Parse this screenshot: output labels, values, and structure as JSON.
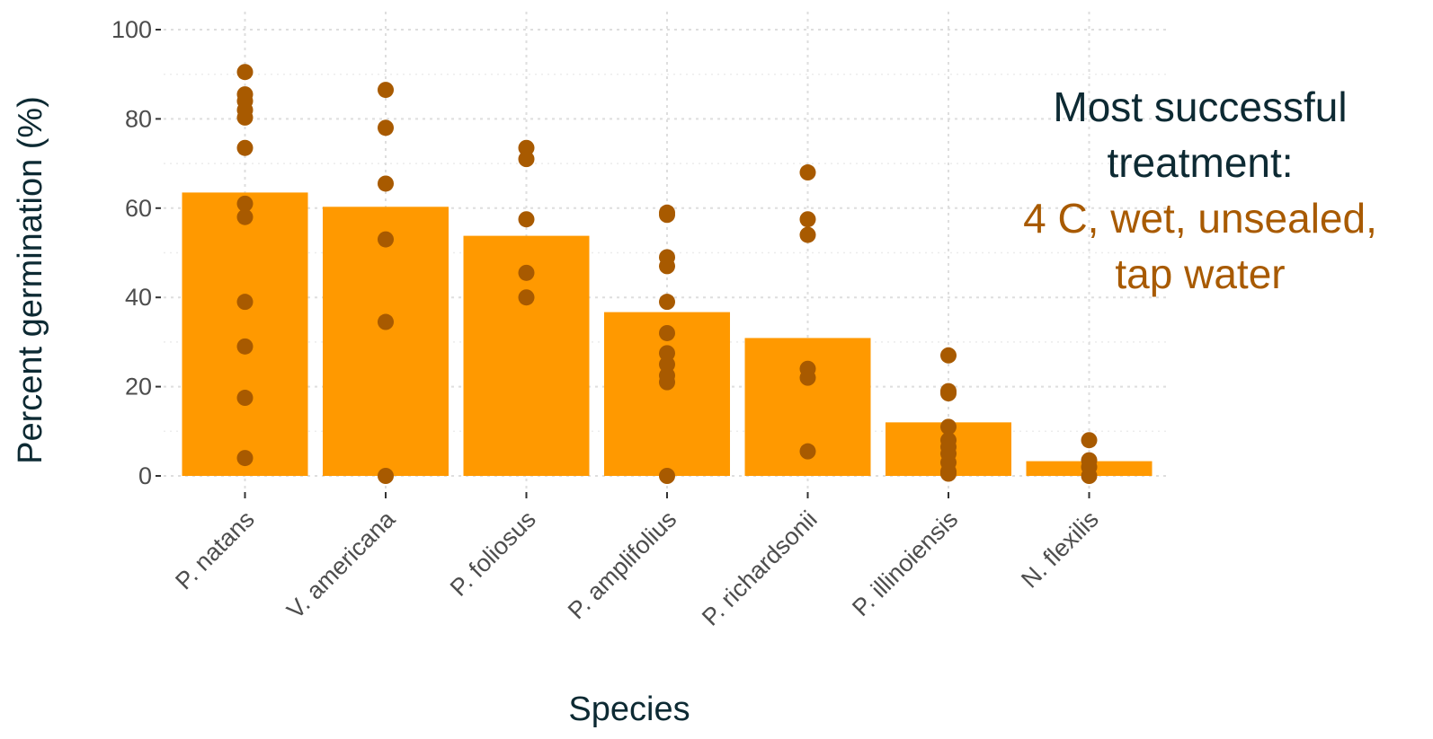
{
  "chart_data": {
    "type": "bar",
    "xlabel": "Species",
    "ylabel": "Percent germination (%)",
    "ylim": [
      0,
      100
    ],
    "yticks": [
      0,
      20,
      40,
      60,
      80,
      100
    ],
    "grid": true,
    "categories": [
      "P. natans",
      "V. americana",
      "P. foliosus",
      "P. amplifolius",
      "P. richardsonii",
      "P. illinoiensis",
      "N. flexilis"
    ],
    "values": [
      63.5,
      60.3,
      53.8,
      36.7,
      30.9,
      12.0,
      3.3
    ],
    "points": [
      [
        90.5,
        85.5,
        84,
        82,
        80.3,
        73.5,
        61,
        58,
        39,
        29,
        17.5,
        4
      ],
      [
        86.5,
        78,
        65.5,
        53,
        34.5,
        0
      ],
      [
        73.5,
        71,
        57.5,
        45.5,
        40
      ],
      [
        59,
        58.5,
        49,
        47,
        39,
        32,
        27.5,
        25,
        22.5,
        21,
        0
      ],
      [
        68,
        57.5,
        54,
        24,
        22,
        5.5
      ],
      [
        27,
        19,
        18.5,
        11,
        8,
        6.5,
        5,
        3,
        1,
        0.5
      ],
      [
        8,
        3.5,
        2,
        0
      ]
    ],
    "colors": {
      "bar": "#ff9900",
      "point": "#a85a00",
      "grid": "#dedede",
      "accent": "#a85a00"
    }
  },
  "annotation": {
    "line1": "Most successful",
    "line2": "treatment:",
    "line3": "4 C, wet, unsealed,",
    "line4": "tap water"
  }
}
